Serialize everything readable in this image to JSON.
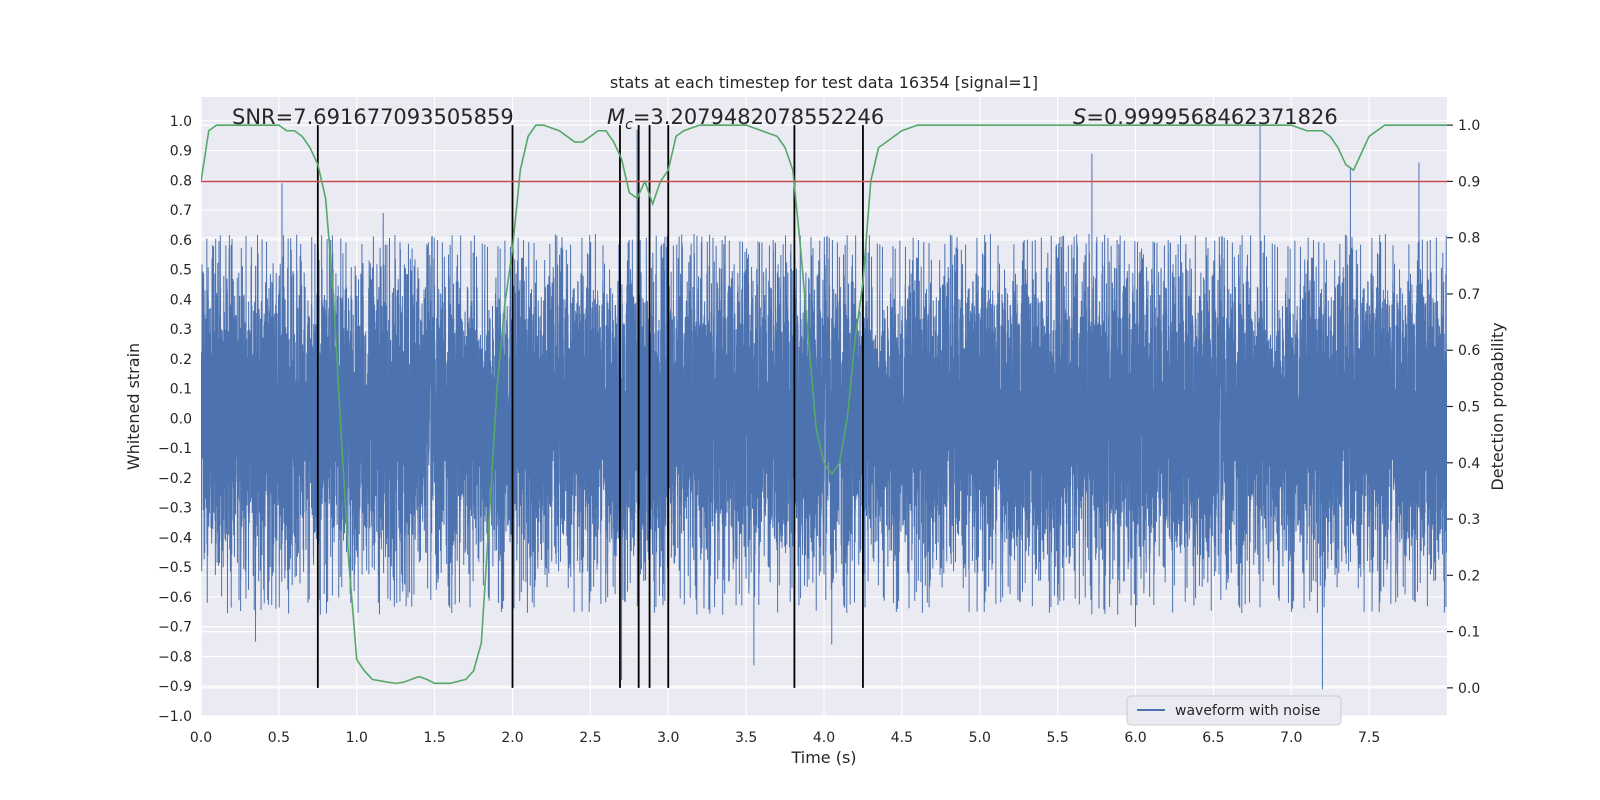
{
  "chart_data": {
    "type": "line",
    "title": "stats at each timestep for test data 16354 [signal=1]",
    "xlabel": "Time (s)",
    "ylabel": "Whitened strain",
    "ylabel_right": "Detection probability",
    "xlim": [
      0.0,
      8.0
    ],
    "ylim": [
      -1.0,
      1.08
    ],
    "ylim_right": [
      -0.05,
      1.05
    ],
    "x_ticks": [
      0.0,
      0.5,
      1.0,
      1.5,
      2.0,
      2.5,
      3.0,
      3.5,
      4.0,
      4.5,
      5.0,
      5.5,
      6.0,
      6.5,
      7.0,
      7.5
    ],
    "x_tick_labels": [
      "0.0",
      "0.5",
      "1.0",
      "1.5",
      "2.0",
      "2.5",
      "3.0",
      "3.5",
      "4.0",
      "4.5",
      "5.0",
      "5.5",
      "6.0",
      "6.5",
      "7.0",
      "7.5"
    ],
    "y_ticks": [
      1.0,
      0.9,
      0.8,
      0.7,
      0.6,
      0.5,
      0.4,
      0.3,
      0.2,
      0.1,
      0.0,
      -0.1,
      -0.2,
      -0.3,
      -0.4,
      -0.5,
      -0.6,
      -0.7,
      -0.8,
      -0.9,
      -1.0
    ],
    "y_tick_labels": [
      "1.0",
      "0.9",
      "0.8",
      "0.7",
      "0.6",
      "0.5",
      "0.4",
      "0.3",
      "0.2",
      "0.1",
      "0.0",
      "−0.1",
      "−0.2",
      "−0.3",
      "−0.4",
      "−0.5",
      "−0.6",
      "−0.7",
      "−0.8",
      "−0.9",
      "−1.0"
    ],
    "y_right_ticks": [
      1.0,
      0.9,
      0.8,
      0.7,
      0.6,
      0.5,
      0.4,
      0.3,
      0.2,
      0.1,
      0.0
    ],
    "y_right_tick_labels": [
      "1.0",
      "0.9",
      "0.8",
      "0.7",
      "0.6",
      "0.5",
      "0.4",
      "0.3",
      "0.2",
      "0.1",
      "0.0"
    ],
    "threshold": 0.9,
    "vertical_lines": [
      0.75,
      2.0,
      2.69,
      2.81,
      2.88,
      3.0,
      3.81,
      4.25
    ],
    "annotations": {
      "snr": "SNR=7.691677093505859",
      "mc_symbol": "M",
      "mc_sub": "c",
      "mc_value": "=3.2079482078552246",
      "s_symbol": "S",
      "s_value": "=0.9999568462371826"
    },
    "legend": [
      "waveform with noise"
    ],
    "series": [
      {
        "name": "waveform with noise",
        "color": "#4c72b0",
        "sample_rate": 2048,
        "duration": 8.0,
        "noise_std": 0.26,
        "peaks": [
          {
            "t": 0.52,
            "v": 0.79
          },
          {
            "t": 0.75,
            "v": -0.74
          },
          {
            "t": 0.35,
            "v": -0.75
          },
          {
            "t": 1.17,
            "v": 0.69
          },
          {
            "t": 2.7,
            "v": -0.88
          },
          {
            "t": 2.8,
            "v": 0.97
          },
          {
            "t": 3.81,
            "v": 0.77
          },
          {
            "t": 3.55,
            "v": -0.83
          },
          {
            "t": 5.72,
            "v": 0.89
          },
          {
            "t": 6.8,
            "v": 0.99
          },
          {
            "t": 7.2,
            "v": -0.91
          },
          {
            "t": 7.38,
            "v": 0.84
          },
          {
            "t": 7.82,
            "v": 0.86
          },
          {
            "t": 6.0,
            "v": -0.7
          },
          {
            "t": 4.05,
            "v": -0.76
          }
        ]
      },
      {
        "name": "detection probability",
        "color": "#55a868",
        "axis": "right",
        "x": [
          0.0,
          0.05,
          0.1,
          0.2,
          0.3,
          0.4,
          0.5,
          0.55,
          0.6,
          0.65,
          0.7,
          0.75,
          0.8,
          0.85,
          0.9,
          0.95,
          1.0,
          1.05,
          1.1,
          1.2,
          1.25,
          1.3,
          1.35,
          1.4,
          1.45,
          1.5,
          1.6,
          1.7,
          1.75,
          1.8,
          1.85,
          1.9,
          1.95,
          2.0,
          2.05,
          2.1,
          2.15,
          2.2,
          2.3,
          2.4,
          2.45,
          2.5,
          2.55,
          2.6,
          2.65,
          2.7,
          2.75,
          2.8,
          2.85,
          2.9,
          2.95,
          3.0,
          3.05,
          3.1,
          3.2,
          3.3,
          3.4,
          3.5,
          3.6,
          3.7,
          3.75,
          3.8,
          3.85,
          3.9,
          3.95,
          4.0,
          4.05,
          4.1,
          4.15,
          4.2,
          4.25,
          4.3,
          4.35,
          4.4,
          4.5,
          4.6,
          4.7,
          4.8,
          5.0,
          5.5,
          6.0,
          6.5,
          7.0,
          7.1,
          7.2,
          7.25,
          7.3,
          7.35,
          7.4,
          7.45,
          7.5,
          7.6,
          7.7,
          7.8,
          7.9,
          8.0
        ],
        "values": [
          0.9,
          0.99,
          1.0,
          1.0,
          1.0,
          1.0,
          1.0,
          0.99,
          0.99,
          0.98,
          0.96,
          0.93,
          0.87,
          0.7,
          0.45,
          0.22,
          0.05,
          0.03,
          0.015,
          0.01,
          0.008,
          0.01,
          0.015,
          0.02,
          0.015,
          0.008,
          0.008,
          0.015,
          0.03,
          0.08,
          0.3,
          0.53,
          0.68,
          0.78,
          0.92,
          0.98,
          1.0,
          1.0,
          0.99,
          0.97,
          0.97,
          0.98,
          0.99,
          0.99,
          0.97,
          0.94,
          0.88,
          0.87,
          0.9,
          0.86,
          0.9,
          0.92,
          0.98,
          0.99,
          1.0,
          1.0,
          1.0,
          1.0,
          0.99,
          0.98,
          0.96,
          0.92,
          0.78,
          0.62,
          0.46,
          0.4,
          0.38,
          0.4,
          0.48,
          0.62,
          0.72,
          0.9,
          0.96,
          0.97,
          0.99,
          1.0,
          1.0,
          1.0,
          1.0,
          1.0,
          1.0,
          1.0,
          1.0,
          0.99,
          0.99,
          0.98,
          0.96,
          0.93,
          0.92,
          0.95,
          0.98,
          1.0,
          1.0,
          1.0,
          1.0,
          1.0
        ]
      }
    ]
  },
  "colors": {
    "plot_bg": "#eaeaf2",
    "grid": "#ffffff",
    "waveform": "#4c72b0",
    "probability": "#55a868",
    "threshold": "#c44e52",
    "vline": "#000000",
    "text": "#262626"
  }
}
